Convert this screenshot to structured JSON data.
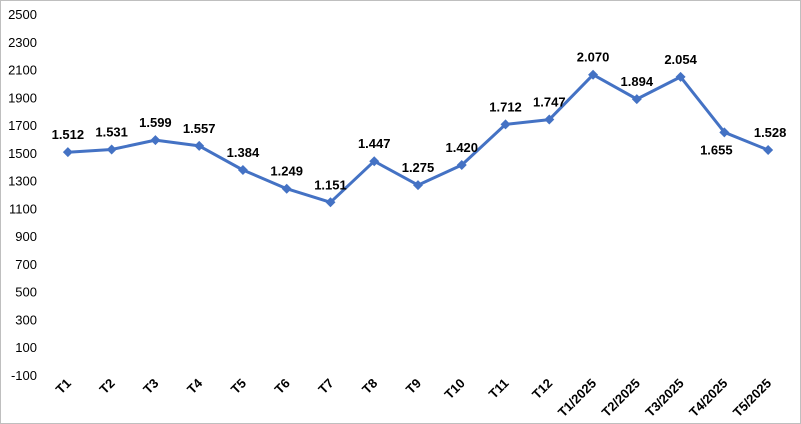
{
  "chart_data": {
    "type": "line",
    "categories": [
      "T1",
      "T2",
      "T3",
      "T4",
      "T5",
      "T6",
      "T7",
      "T8",
      "T9",
      "T10",
      "T11",
      "T12",
      "T1/2025",
      "T2/2025",
      "T3/2025",
      "T4/2025",
      "T5/2025"
    ],
    "series": [
      {
        "values": [
          1512,
          1531,
          1599,
          1557,
          1384,
          1249,
          1151,
          1447,
          1275,
          1420,
          1712,
          1747,
          2070,
          1894,
          2054,
          1655,
          1528
        ],
        "labels": [
          "1.512",
          "1.531",
          "1.599",
          "1.557",
          "1.384",
          "1.249",
          "1.151",
          "1.447",
          "1.275",
          "1.420",
          "1.712",
          "1.747",
          "2.070",
          "1.894",
          "2.054",
          "1.655",
          "1.528"
        ],
        "color": "#4472c4",
        "marker": "diamond"
      }
    ],
    "yticks": [
      "2500",
      "2300",
      "2100",
      "1900",
      "1700",
      "1500",
      "1300",
      "1100",
      "900",
      "700",
      "500",
      "300",
      "100",
      "-100"
    ],
    "ylim": [
      -100,
      2500
    ],
    "grid": false,
    "legend": "none",
    "highlight_color": "#ff0000",
    "label_color": "#000000"
  }
}
